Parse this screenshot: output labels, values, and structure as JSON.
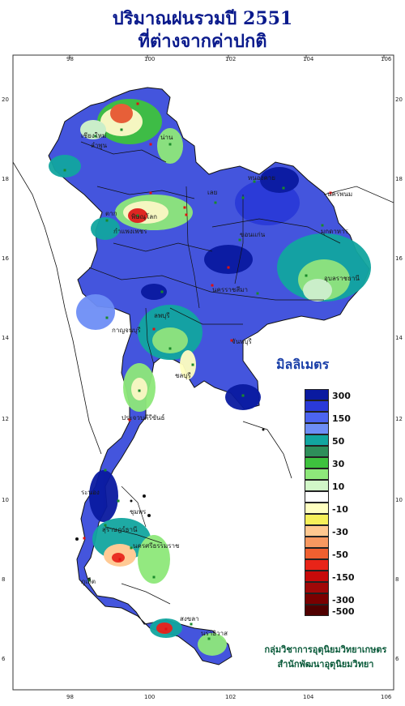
{
  "title": {
    "line1": "ปริมาณฝนรวมปี  2551",
    "line2": "ที่ต่างจากค่าปกติ"
  },
  "axis": {
    "x_ticks": [
      "98",
      "100",
      "102",
      "104",
      "106"
    ],
    "y_ticks": [
      "20",
      "18",
      "16",
      "14",
      "12",
      "10",
      "8",
      "6"
    ]
  },
  "legend": {
    "title": "มิลลิเมตร",
    "items": [
      {
        "label": "300",
        "color": "#0a1aa0"
      },
      {
        "label": "",
        "color": "#2a3ad8"
      },
      {
        "label": "150",
        "color": "#4c64f0"
      },
      {
        "label": "",
        "color": "#6e8ef6"
      },
      {
        "label": "50",
        "color": "#12a6a0"
      },
      {
        "label": "",
        "color": "#2e8f5a"
      },
      {
        "label": "30",
        "color": "#3ec23e"
      },
      {
        "label": "",
        "color": "#8ee87a"
      },
      {
        "label": "10",
        "color": "#d2f7c8"
      },
      {
        "label": "",
        "color": "#ffffff"
      },
      {
        "label": "-10",
        "color": "#ffffc0"
      },
      {
        "label": "",
        "color": "#f6f05a"
      },
      {
        "label": "-30",
        "color": "#ffc890"
      },
      {
        "label": "",
        "color": "#f89860"
      },
      {
        "label": "-50",
        "color": "#f06030"
      },
      {
        "label": "",
        "color": "#e82418"
      },
      {
        "label": "-150",
        "color": "#c80a0a"
      },
      {
        "label": "",
        "color": "#a00808"
      },
      {
        "label": "-300",
        "color": "#7a0000"
      },
      {
        "label": "-500",
        "color": "#500000"
      }
    ]
  },
  "places": [
    "เชียงใหม่",
    "ลำพูน",
    "น่าน",
    "ตาก",
    "พิษณุโลก",
    "หนองคาย",
    "นครพนม",
    "มุกดาหาร",
    "ขอนแก่น",
    "อุบลราชธานี",
    "นครราชสีมา",
    "กาญจนบุรี",
    "ประจวบคีรีขันธ์",
    "ชุมพร",
    "ระนอง",
    "สุราษฎร์ธานี",
    "นครศรีธรรมราช",
    "ภูเก็ต",
    "สงขลา",
    "นราธิวาส",
    "เลย",
    "กำแพงเพชร",
    "ลพบุรี",
    "ชลบุรี",
    "จันทบุรี"
  ],
  "credit": {
    "line1": "กลุ่มวิชาการอุตุนิยมวิทยาเกษตร",
    "line2": "สำนักพัฒนาอุตุนิยมวิทยา"
  }
}
